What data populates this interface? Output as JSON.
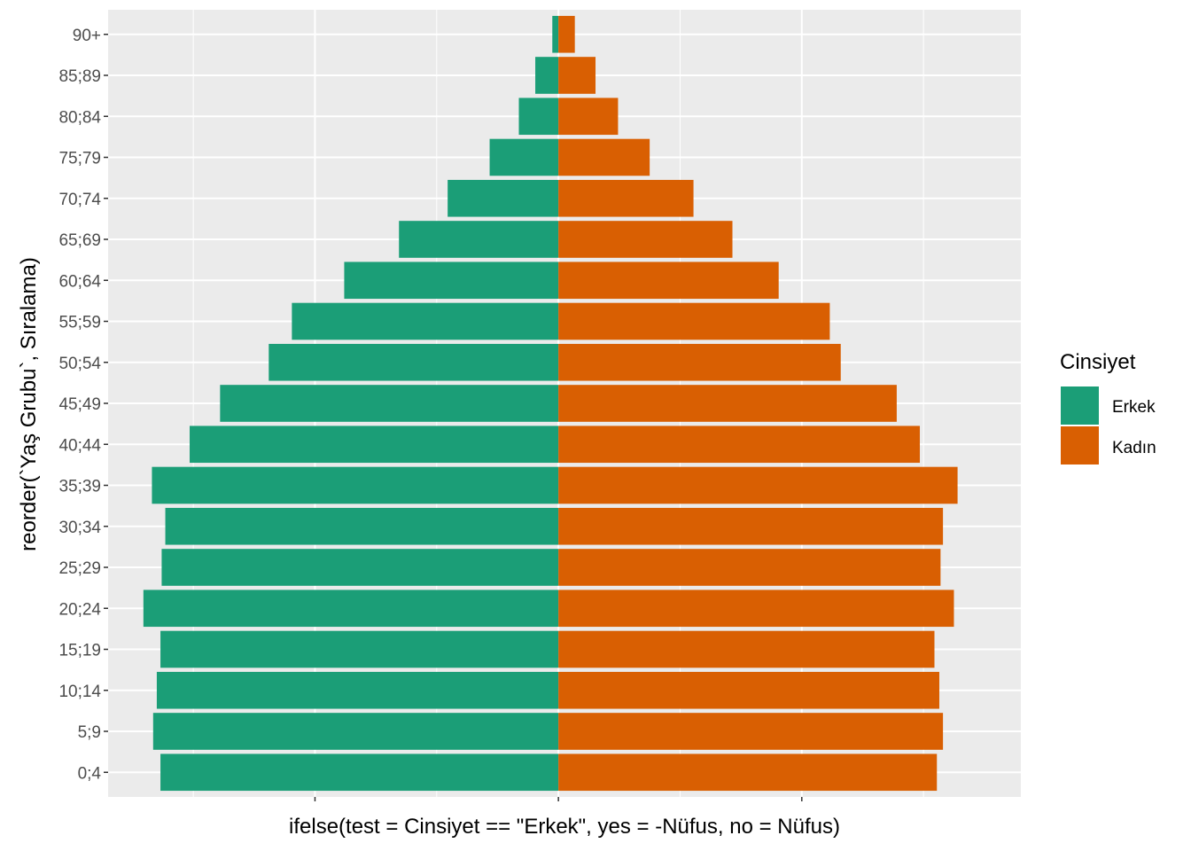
{
  "chart_data": {
    "type": "bar",
    "orientation": "horizontal",
    "title": "",
    "xlabel": "ifelse(test = Cinsiyet == \"Erkek\", yes = -Nüfus, no = Nüfus)",
    "ylabel": "reorder(`Yaş Grubu`, Sıralama)",
    "categories": [
      "0;4",
      "5;9",
      "10;14",
      "15;19",
      "20;24",
      "25;29",
      "30;34",
      "35;39",
      "40;44",
      "45;49",
      "50;54",
      "55;59",
      "60;64",
      "65;69",
      "70;74",
      "75;79",
      "80;84",
      "85;89",
      "90+"
    ],
    "series": [
      {
        "name": "Erkek",
        "color": "#1B9E77",
        "values": [
          -3270,
          -3330,
          -3300,
          -3270,
          -3410,
          -3260,
          -3230,
          -3340,
          -3030,
          -2780,
          -2380,
          -2190,
          -1760,
          -1310,
          -910,
          -565,
          -325,
          -190,
          -50
        ]
      },
      {
        "name": "Kadın",
        "color": "#D95F02",
        "values": [
          3110,
          3160,
          3130,
          3090,
          3250,
          3140,
          3160,
          3280,
          2970,
          2780,
          2320,
          2230,
          1810,
          1430,
          1110,
          750,
          490,
          305,
          135
        ]
      }
    ],
    "xlim": [
      -3700,
      3800
    ],
    "ylim": [
      0.4,
      19.6
    ],
    "x_major": [
      -2000,
      0,
      2000
    ],
    "x_minor": [
      -3000,
      -1000,
      1000,
      3000
    ],
    "grid": true,
    "legend": {
      "title": "Cinsiyet",
      "position": "right"
    }
  }
}
